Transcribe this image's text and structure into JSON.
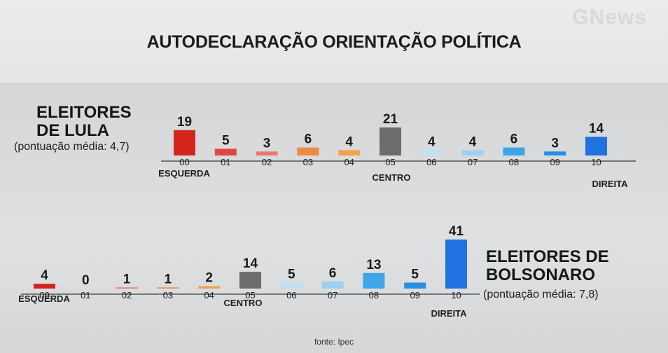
{
  "watermark": "GNews",
  "title": "AUTODECLARAÇÃO ORIENTAÇÃO POLÍTICA",
  "source": "fonte: Ipec",
  "chart_data": [
    {
      "type": "bar",
      "name": "lula",
      "title_line1": "ELEITORES",
      "title_line2": "DE LULA",
      "subtitle": "(pontuação média: 4,7)",
      "categories": [
        "00",
        "01",
        "02",
        "03",
        "04",
        "05",
        "06",
        "07",
        "08",
        "09",
        "10"
      ],
      "values": [
        19,
        5,
        3,
        6,
        4,
        21,
        4,
        4,
        6,
        3,
        14
      ],
      "ylim": [
        0,
        21
      ],
      "annotations": {
        "left": "ESQUERDA",
        "center": "CENTRO",
        "right": "DIREITA"
      },
      "colors": [
        "#d2261d",
        "#dd4840",
        "#e87c6c",
        "#ed8a46",
        "#f0a24e",
        "#6c6c6c",
        "#bde0f4",
        "#9dd0f0",
        "#3ea6e6",
        "#2a8ee0",
        "#1f72e0"
      ]
    },
    {
      "type": "bar",
      "name": "bolsonaro",
      "title_line1": "ELEITORES DE",
      "title_line2": "BOLSONARO",
      "subtitle": "(pontuação média: 7,8)",
      "categories": [
        "00",
        "01",
        "02",
        "03",
        "04",
        "05",
        "06",
        "07",
        "08",
        "09",
        "10"
      ],
      "values": [
        4,
        0,
        1,
        1,
        2,
        14,
        5,
        6,
        13,
        5,
        41
      ],
      "ylim": [
        0,
        41
      ],
      "annotations": {
        "left": "ESQUERDA",
        "center": "CENTRO",
        "right": "DIREITA"
      },
      "colors": [
        "#d2261d",
        "#dd4840",
        "#e87c6c",
        "#ed8a46",
        "#f0a24e",
        "#6c6c6c",
        "#bde0f4",
        "#9dd0f0",
        "#3ea6e6",
        "#2a8ee0",
        "#1f72e0"
      ]
    }
  ]
}
